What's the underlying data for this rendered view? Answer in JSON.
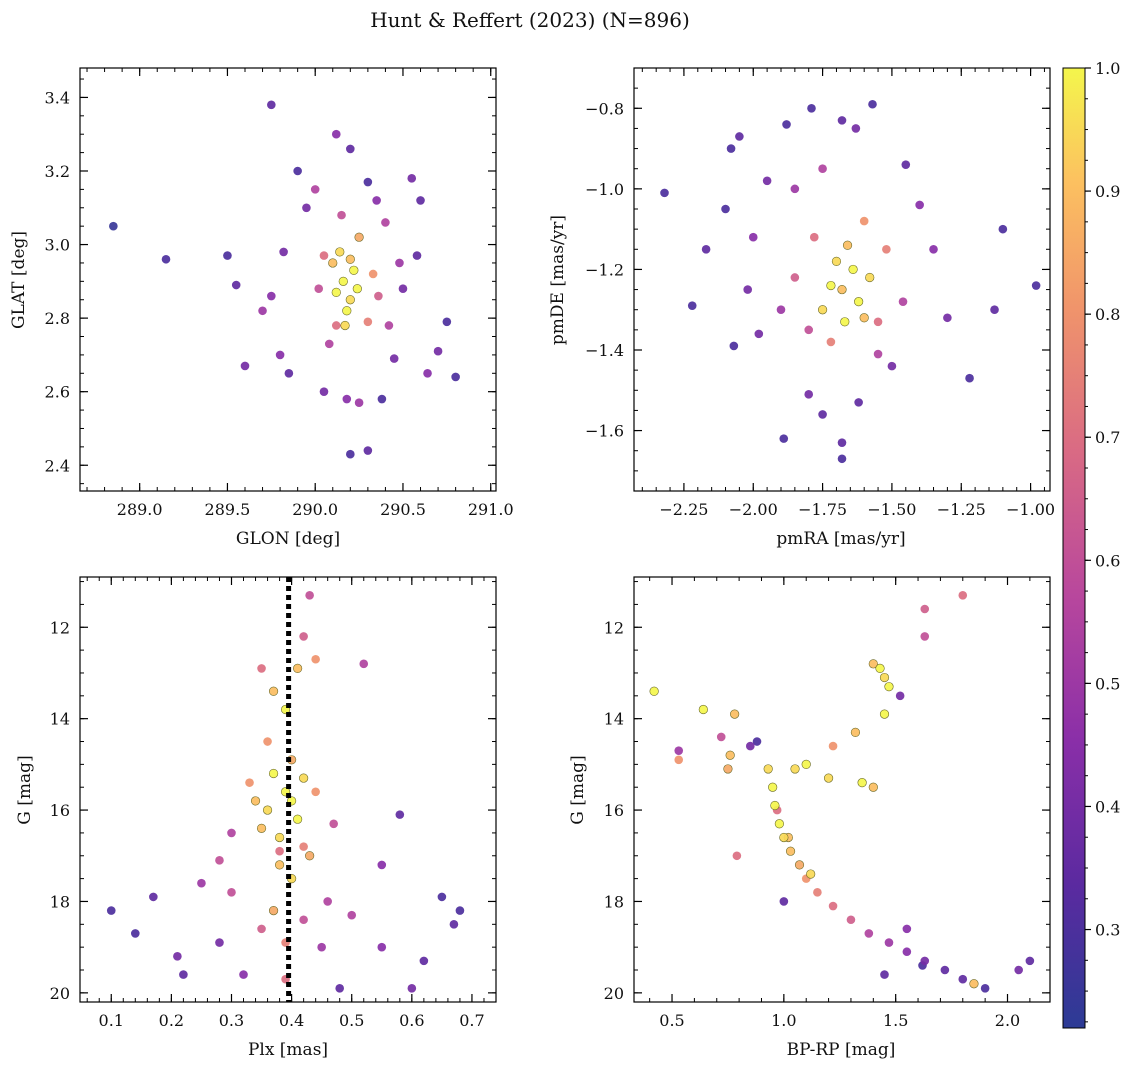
{
  "figure": {
    "title": "Hunt & Reffert (2023) (N=896)",
    "colorbar": {
      "cmap": "plasma",
      "range": [
        0.22,
        1.0
      ],
      "ticks": [
        "0.3",
        "0.4",
        "0.5",
        "0.6",
        "0.7",
        "0.8",
        "0.9",
        "1.0"
      ],
      "tick_values": [
        0.3,
        0.4,
        0.5,
        0.6,
        0.7,
        0.8,
        0.9,
        1.0
      ]
    }
  },
  "chart_data": [
    {
      "type": "scatter",
      "name": "sky-position",
      "title": "",
      "xlabel": "GLON [deg]",
      "ylabel": "GLAT [deg]",
      "xlim": [
        288.66,
        291.03
      ],
      "ylim": [
        2.33,
        3.48
      ],
      "y_inverted": false,
      "xticks": [
        "289.0",
        "289.5",
        "290.0",
        "290.5",
        "291.0"
      ],
      "xtick_values": [
        289.0,
        289.5,
        290.0,
        290.5,
        291.0
      ],
      "yticks": [
        "2.4",
        "2.6",
        "2.8",
        "3.0",
        "3.2",
        "3.4"
      ],
      "ytick_values": [
        2.4,
        2.6,
        2.8,
        3.0,
        3.2,
        3.4
      ],
      "x_minor_step": 0.1,
      "y_minor_step": 0.05,
      "points": [
        [
          288.85,
          3.05,
          0.25
        ],
        [
          289.15,
          2.96,
          0.3
        ],
        [
          289.75,
          3.38,
          0.35
        ],
        [
          290.12,
          3.3,
          0.45
        ],
        [
          290.3,
          3.17,
          0.3
        ],
        [
          289.5,
          2.97,
          0.3
        ],
        [
          289.55,
          2.89,
          0.35
        ],
        [
          289.6,
          2.67,
          0.4
        ],
        [
          290.2,
          2.43,
          0.3
        ],
        [
          290.3,
          2.44,
          0.35
        ],
        [
          290.55,
          3.18,
          0.4
        ],
        [
          290.6,
          3.12,
          0.35
        ],
        [
          290.75,
          2.79,
          0.3
        ],
        [
          290.7,
          2.71,
          0.4
        ],
        [
          290.64,
          2.65,
          0.45
        ],
        [
          290.8,
          2.64,
          0.3
        ],
        [
          289.8,
          2.7,
          0.45
        ],
        [
          289.85,
          2.65,
          0.35
        ],
        [
          290.05,
          2.6,
          0.4
        ],
        [
          290.18,
          2.58,
          0.45
        ],
        [
          290.25,
          2.57,
          0.5
        ],
        [
          290.38,
          2.58,
          0.3
        ],
        [
          290.45,
          2.69,
          0.4
        ],
        [
          290.5,
          2.88,
          0.4
        ],
        [
          290.58,
          2.97,
          0.35
        ],
        [
          289.9,
          3.2,
          0.3
        ],
        [
          289.95,
          3.1,
          0.4
        ],
        [
          290.0,
          3.15,
          0.55
        ],
        [
          290.2,
          3.26,
          0.35
        ],
        [
          290.35,
          3.12,
          0.45
        ],
        [
          289.7,
          2.82,
          0.5
        ],
        [
          289.75,
          2.86,
          0.45
        ],
        [
          289.82,
          2.98,
          0.4
        ],
        [
          290.42,
          2.78,
          0.55
        ],
        [
          290.48,
          2.95,
          0.5
        ],
        [
          290.4,
          3.06,
          0.55
        ],
        [
          290.08,
          2.73,
          0.55
        ],
        [
          290.02,
          2.88,
          0.6
        ],
        [
          290.12,
          2.78,
          0.7
        ],
        [
          290.3,
          2.79,
          0.75
        ],
        [
          290.33,
          2.92,
          0.8
        ],
        [
          290.25,
          3.02,
          0.85
        ],
        [
          290.05,
          2.97,
          0.7
        ],
        [
          290.15,
          3.08,
          0.6
        ],
        [
          290.36,
          2.86,
          0.65
        ],
        [
          290.1,
          2.95,
          0.9
        ],
        [
          290.16,
          2.9,
          1.0
        ],
        [
          290.2,
          2.85,
          0.95
        ],
        [
          290.22,
          2.93,
          1.0
        ],
        [
          290.18,
          2.82,
          1.0
        ],
        [
          290.14,
          2.98,
          0.95
        ],
        [
          290.24,
          2.88,
          1.0
        ],
        [
          290.12,
          2.87,
          1.0
        ],
        [
          290.2,
          2.96,
          0.9
        ],
        [
          290.17,
          2.78,
          0.95
        ]
      ]
    },
    {
      "type": "scatter",
      "name": "proper-motion",
      "title": "",
      "xlabel": "pmRA [mas/yr]",
      "ylabel": "pmDE [mas/yr]",
      "xlim": [
        -2.43,
        -0.93
      ],
      "ylim": [
        -1.75,
        -0.7
      ],
      "y_inverted": false,
      "xticks": [
        "−2.25",
        "−2.00",
        "−1.75",
        "−1.50",
        "−1.25",
        "−1.00"
      ],
      "xtick_values": [
        -2.25,
        -2.0,
        -1.75,
        -1.5,
        -1.25,
        -1.0
      ],
      "yticks": [
        "−1.6",
        "−1.4",
        "−1.2",
        "−1.0",
        "−0.8"
      ],
      "ytick_values": [
        -1.6,
        -1.4,
        -1.2,
        -1.0,
        -0.8
      ],
      "x_minor_step": 0.05,
      "y_minor_step": 0.05,
      "points": [
        [
          -2.32,
          -1.01,
          0.3
        ],
        [
          -2.22,
          -1.29,
          0.3
        ],
        [
          -2.17,
          -1.15,
          0.35
        ],
        [
          -2.1,
          -1.05,
          0.3
        ],
        [
          -2.08,
          -0.9,
          0.3
        ],
        [
          -2.05,
          -0.87,
          0.35
        ],
        [
          -1.88,
          -0.84,
          0.3
        ],
        [
          -1.79,
          -0.8,
          0.3
        ],
        [
          -1.68,
          -0.83,
          0.35
        ],
        [
          -1.63,
          -0.85,
          0.4
        ],
        [
          -1.57,
          -0.79,
          0.3
        ],
        [
          -1.45,
          -0.94,
          0.35
        ],
        [
          -1.1,
          -1.1,
          0.3
        ],
        [
          -0.98,
          -1.24,
          0.3
        ],
        [
          -1.13,
          -1.3,
          0.35
        ],
        [
          -1.22,
          -1.47,
          0.3
        ],
        [
          -1.68,
          -1.67,
          0.3
        ],
        [
          -1.68,
          -1.63,
          0.35
        ],
        [
          -1.89,
          -1.62,
          0.3
        ],
        [
          -1.75,
          -1.56,
          0.35
        ],
        [
          -1.8,
          -1.51,
          0.4
        ],
        [
          -1.62,
          -1.53,
          0.35
        ],
        [
          -1.5,
          -1.44,
          0.4
        ],
        [
          -2.07,
          -1.39,
          0.3
        ],
        [
          -1.98,
          -1.36,
          0.4
        ],
        [
          -2.0,
          -1.12,
          0.45
        ],
        [
          -2.02,
          -1.25,
          0.4
        ],
        [
          -1.35,
          -1.15,
          0.45
        ],
        [
          -1.3,
          -1.32,
          0.4
        ],
        [
          -1.4,
          -1.04,
          0.45
        ],
        [
          -1.95,
          -0.98,
          0.4
        ],
        [
          -1.85,
          -1.0,
          0.5
        ],
        [
          -1.75,
          -0.95,
          0.55
        ],
        [
          -1.46,
          -1.28,
          0.55
        ],
        [
          -1.55,
          -1.41,
          0.55
        ],
        [
          -1.9,
          -1.3,
          0.5
        ],
        [
          -1.8,
          -1.35,
          0.6
        ],
        [
          -1.78,
          -1.12,
          0.7
        ],
        [
          -1.52,
          -1.15,
          0.75
        ],
        [
          -1.55,
          -1.33,
          0.7
        ],
        [
          -1.85,
          -1.22,
          0.65
        ],
        [
          -1.6,
          -1.08,
          0.8
        ],
        [
          -1.72,
          -1.38,
          0.75
        ],
        [
          -1.68,
          -1.25,
          0.9
        ],
        [
          -1.64,
          -1.2,
          1.0
        ],
        [
          -1.7,
          -1.18,
          0.95
        ],
        [
          -1.62,
          -1.28,
          1.0
        ],
        [
          -1.72,
          -1.24,
          1.0
        ],
        [
          -1.58,
          -1.22,
          0.95
        ],
        [
          -1.66,
          -1.14,
          0.9
        ],
        [
          -1.75,
          -1.3,
          0.95
        ],
        [
          -1.6,
          -1.32,
          0.9
        ],
        [
          -1.67,
          -1.33,
          1.0
        ]
      ]
    },
    {
      "type": "scatter",
      "name": "plx-vs-mag",
      "title": "",
      "xlabel": "Plx [mas]",
      "ylabel": "G [mag]",
      "xlim": [
        0.048,
        0.74
      ],
      "ylim": [
        20.2,
        10.9
      ],
      "y_inverted": true,
      "vline": {
        "x": 0.395,
        "style": "dotted",
        "color": "#000000"
      },
      "xticks": [
        "0.1",
        "0.2",
        "0.3",
        "0.4",
        "0.5",
        "0.6",
        "0.7"
      ],
      "xtick_values": [
        0.1,
        0.2,
        0.3,
        0.4,
        0.5,
        0.6,
        0.7
      ],
      "yticks": [
        "12",
        "14",
        "16",
        "18",
        "20"
      ],
      "ytick_values": [
        12,
        14,
        16,
        18,
        20
      ],
      "x_minor_step": 0.02,
      "y_minor_step": 0.5,
      "points": [
        [
          0.1,
          18.2,
          0.3
        ],
        [
          0.14,
          18.7,
          0.3
        ],
        [
          0.17,
          17.9,
          0.35
        ],
        [
          0.21,
          19.2,
          0.4
        ],
        [
          0.22,
          19.6,
          0.35
        ],
        [
          0.68,
          18.2,
          0.3
        ],
        [
          0.67,
          18.5,
          0.35
        ],
        [
          0.65,
          17.9,
          0.3
        ],
        [
          0.62,
          19.3,
          0.35
        ],
        [
          0.6,
          19.9,
          0.4
        ],
        [
          0.58,
          16.1,
          0.35
        ],
        [
          0.55,
          17.2,
          0.45
        ],
        [
          0.52,
          12.8,
          0.55
        ],
        [
          0.48,
          19.9,
          0.35
        ],
        [
          0.43,
          11.3,
          0.6
        ],
        [
          0.42,
          12.2,
          0.65
        ],
        [
          0.44,
          12.7,
          0.8
        ],
        [
          0.35,
          12.9,
          0.7
        ],
        [
          0.25,
          17.6,
          0.5
        ],
        [
          0.28,
          18.9,
          0.4
        ],
        [
          0.32,
          19.6,
          0.45
        ],
        [
          0.45,
          19.0,
          0.5
        ],
        [
          0.5,
          18.3,
          0.55
        ],
        [
          0.55,
          19.0,
          0.45
        ],
        [
          0.3,
          16.5,
          0.55
        ],
        [
          0.47,
          16.3,
          0.6
        ],
        [
          0.3,
          17.8,
          0.6
        ],
        [
          0.46,
          18.0,
          0.55
        ],
        [
          0.35,
          18.6,
          0.65
        ],
        [
          0.42,
          18.4,
          0.6
        ],
        [
          0.38,
          16.9,
          0.7
        ],
        [
          0.42,
          16.8,
          0.75
        ],
        [
          0.36,
          14.5,
          0.8
        ],
        [
          0.4,
          14.9,
          0.85
        ],
        [
          0.33,
          15.4,
          0.8
        ],
        [
          0.44,
          15.6,
          0.8
        ],
        [
          0.37,
          13.4,
          0.9
        ],
        [
          0.39,
          13.8,
          1.0
        ],
        [
          0.41,
          12.9,
          0.9
        ],
        [
          0.37,
          15.2,
          1.0
        ],
        [
          0.39,
          15.6,
          1.0
        ],
        [
          0.36,
          16.0,
          0.95
        ],
        [
          0.41,
          16.2,
          1.0
        ],
        [
          0.38,
          16.6,
          0.95
        ],
        [
          0.4,
          15.8,
          1.0
        ],
        [
          0.35,
          16.4,
          0.9
        ],
        [
          0.42,
          15.3,
          0.95
        ],
        [
          0.38,
          17.2,
          0.9
        ],
        [
          0.4,
          17.5,
          0.95
        ],
        [
          0.37,
          18.2,
          0.85
        ],
        [
          0.43,
          17.0,
          0.85
        ],
        [
          0.34,
          15.8,
          0.9
        ],
        [
          0.39,
          19.7,
          0.7
        ],
        [
          0.39,
          18.9,
          0.75
        ],
        [
          0.28,
          17.1,
          0.6
        ]
      ]
    },
    {
      "type": "scatter",
      "name": "color-magnitude",
      "title": "",
      "xlabel": "BP-RP [mag]",
      "ylabel": "G [mag]",
      "xlim": [
        0.33,
        2.19
      ],
      "ylim": [
        20.2,
        10.9
      ],
      "y_inverted": true,
      "xticks": [
        "0.5",
        "1.0",
        "1.5",
        "2.0"
      ],
      "xtick_values": [
        0.5,
        1.0,
        1.5,
        2.0
      ],
      "yticks": [
        "12",
        "14",
        "16",
        "18",
        "20"
      ],
      "ytick_values": [
        12,
        14,
        16,
        18,
        20
      ],
      "x_minor_step": 0.1,
      "y_minor_step": 0.5,
      "points": [
        [
          0.42,
          13.4,
          1.0
        ],
        [
          0.53,
          14.7,
          0.5
        ],
        [
          0.53,
          14.9,
          0.8
        ],
        [
          0.64,
          13.8,
          1.0
        ],
        [
          0.78,
          13.9,
          0.9
        ],
        [
          0.72,
          14.4,
          0.6
        ],
        [
          0.79,
          17.0,
          0.7
        ],
        [
          0.76,
          14.8,
          0.9
        ],
        [
          0.75,
          15.1,
          0.85
        ],
        [
          0.85,
          14.6,
          0.4
        ],
        [
          0.88,
          14.5,
          0.3
        ],
        [
          0.93,
          15.1,
          0.95
        ],
        [
          0.95,
          15.5,
          1.0
        ],
        [
          0.96,
          15.9,
          1.0
        ],
        [
          0.98,
          16.3,
          1.0
        ],
        [
          1.0,
          16.6,
          0.95
        ],
        [
          1.03,
          16.9,
          0.9
        ],
        [
          1.07,
          17.2,
          0.85
        ],
        [
          1.1,
          17.5,
          0.8
        ],
        [
          1.15,
          17.8,
          0.75
        ],
        [
          1.22,
          18.1,
          0.7
        ],
        [
          1.3,
          18.4,
          0.65
        ],
        [
          1.38,
          18.7,
          0.55
        ],
        [
          1.47,
          18.9,
          0.5
        ],
        [
          1.55,
          19.1,
          0.45
        ],
        [
          1.63,
          19.3,
          0.4
        ],
        [
          1.72,
          19.5,
          0.35
        ],
        [
          1.8,
          19.7,
          0.35
        ],
        [
          1.9,
          19.9,
          0.3
        ],
        [
          2.1,
          19.3,
          0.35
        ],
        [
          2.05,
          19.5,
          0.4
        ],
        [
          1.85,
          19.8,
          0.9
        ],
        [
          1.8,
          11.3,
          0.7
        ],
        [
          1.63,
          11.6,
          0.65
        ],
        [
          1.63,
          12.2,
          0.6
        ],
        [
          1.4,
          12.8,
          0.9
        ],
        [
          1.43,
          12.9,
          1.0
        ],
        [
          1.45,
          13.1,
          0.95
        ],
        [
          1.47,
          13.3,
          1.0
        ],
        [
          1.52,
          13.5,
          0.4
        ],
        [
          1.45,
          13.9,
          1.0
        ],
        [
          1.32,
          14.3,
          0.9
        ],
        [
          1.22,
          14.6,
          0.8
        ],
        [
          1.1,
          15.0,
          1.0
        ],
        [
          1.2,
          15.3,
          0.95
        ],
        [
          1.35,
          15.4,
          1.0
        ],
        [
          1.4,
          15.5,
          0.9
        ],
        [
          1.05,
          15.1,
          0.95
        ],
        [
          0.97,
          16.0,
          0.7
        ],
        [
          1.02,
          16.6,
          0.9
        ],
        [
          1.12,
          17.4,
          0.95
        ],
        [
          1.0,
          18.0,
          0.35
        ],
        [
          1.55,
          18.6,
          0.45
        ],
        [
          1.62,
          19.4,
          0.3
        ],
        [
          1.45,
          19.6,
          0.35
        ]
      ]
    }
  ]
}
